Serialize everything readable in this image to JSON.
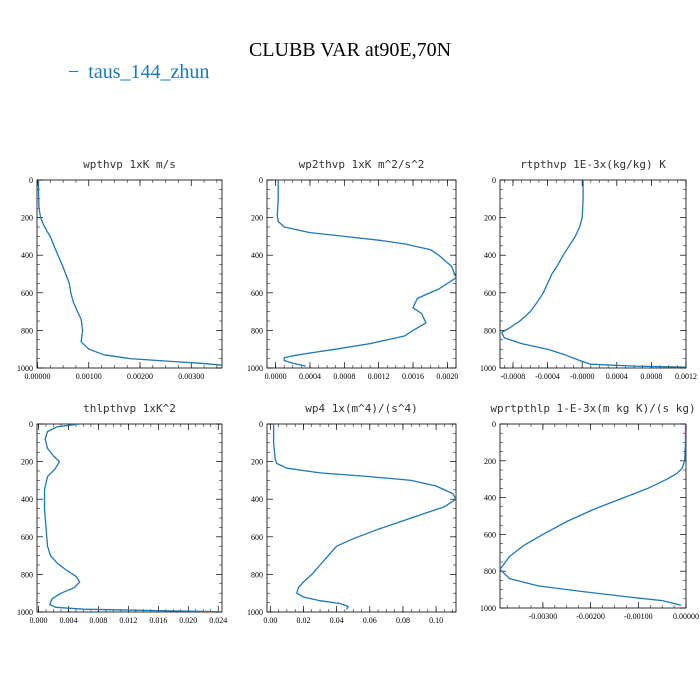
{
  "figure": {
    "title": "CLUBB VAR at90E,70N",
    "series_color": "#1f77b4",
    "legend": {
      "label": "taus_144_zhun",
      "marker": "−"
    }
  },
  "chart_data": [
    {
      "type": "line",
      "title": "wpthvp   1xK m/s",
      "xlim": [
        -1e-05,
        0.0036
      ],
      "ylim": [
        1000,
        0
      ],
      "xticks": [
        0,
        0.001,
        0.002,
        0.003
      ],
      "xtick_labels": [
        "0.00000",
        "0.00100",
        "0.00200",
        "0.00300"
      ],
      "yticks": [
        0,
        200,
        400,
        600,
        800,
        1000
      ],
      "ytick_labels": [
        "0",
        "200",
        "400",
        "600",
        "800",
        "1000"
      ],
      "series": [
        {
          "x": [
            2e-05,
            2e-05,
            3e-05,
            6e-05,
            0.00012,
            0.00018,
            0.00025,
            0.00032,
            0.0004,
            0.00048,
            0.00055,
            0.00062,
            0.00065,
            0.0007,
            0.00078,
            0.00085,
            0.00088,
            0.00085,
            0.001,
            0.0013,
            0.0018,
            0.0026,
            0.0032,
            0.0036
          ],
          "y": [
            0,
            50,
            150,
            200,
            240,
            270,
            300,
            350,
            400,
            450,
            500,
            550,
            600,
            650,
            700,
            740,
            800,
            860,
            900,
            930,
            950,
            965,
            975,
            985
          ]
        }
      ]
    },
    {
      "type": "line",
      "title": "wp2thvp   1xK m^2/s^2",
      "xlim": [
        -0.0001,
        0.0021
      ],
      "ylim": [
        1000,
        0
      ],
      "xticks": [
        0,
        0.0004,
        0.0008,
        0.0012,
        0.0016,
        0.002
      ],
      "xtick_labels": [
        "0.0000",
        "0.0004",
        "0.0008",
        "0.0012",
        "0.0016",
        "0.0020"
      ],
      "yticks": [
        0,
        200,
        400,
        600,
        800,
        1000
      ],
      "ytick_labels": [
        "0",
        "200",
        "400",
        "600",
        "800",
        "1000"
      ],
      "series": [
        {
          "x": [
            3e-05,
            3e-05,
            2e-05,
            3e-05,
            0.0001,
            0.0004,
            0.0008,
            0.0012,
            0.0015,
            0.0018,
            0.0019,
            0.00205,
            0.0021,
            0.0019,
            0.00165,
            0.0016,
            0.0017,
            0.00175,
            0.0016,
            0.0015,
            0.0011,
            0.0007,
            0.0004,
            0.0002,
            0.0001,
            0.0001,
            0.0002,
            0.00035
          ],
          "y": [
            0,
            100,
            190,
            220,
            250,
            280,
            300,
            320,
            340,
            370,
            400,
            460,
            520,
            580,
            630,
            680,
            710,
            760,
            800,
            830,
            870,
            900,
            920,
            935,
            945,
            960,
            975,
            990
          ]
        }
      ]
    },
    {
      "type": "line",
      "title": "rtpthvp   1E-3x(kg/kg) K",
      "xlim": [
        -0.00095,
        0.0012
      ],
      "ylim": [
        1000,
        0
      ],
      "xticks": [
        -0.0008,
        -0.0004,
        0,
        0.0004,
        0.0008,
        0.0012
      ],
      "xtick_labels": [
        "-0.0008",
        "-0.0004",
        "-0.0000",
        "0.0004",
        "0.0008",
        "0.0012"
      ],
      "yticks": [
        0,
        200,
        400,
        600,
        800,
        1000
      ],
      "ytick_labels": [
        "0",
        "200",
        "400",
        "600",
        "800",
        "1000"
      ],
      "series": [
        {
          "x": [
            1e-05,
            1e-05,
            0.0,
            -3e-05,
            -8e-05,
            -0.00015,
            -0.00022,
            -0.00028,
            -0.00035,
            -0.0004,
            -0.00045,
            -0.00052,
            -0.0006,
            -0.00072,
            -0.00085,
            -0.00093,
            -0.0009,
            -0.0007,
            -0.0004,
            -0.0002,
            -3e-05,
            0.0001,
            0.0006,
            0.0012
          ],
          "y": [
            0,
            100,
            200,
            250,
            300,
            350,
            400,
            450,
            500,
            550,
            600,
            650,
            700,
            750,
            790,
            810,
            840,
            870,
            900,
            930,
            960,
            980,
            990,
            995
          ]
        }
      ]
    },
    {
      "type": "line",
      "title": "thlpthvp   1xK^2",
      "xlim": [
        -0.0002,
        0.0245
      ],
      "ylim": [
        1000,
        0
      ],
      "xticks": [
        0,
        0.004,
        0.008,
        0.012,
        0.016,
        0.02,
        0.024
      ],
      "xtick_labels": [
        "0.000",
        "0.004",
        "0.008",
        "0.012",
        "0.016",
        "0.020",
        "0.024"
      ],
      "yticks": [
        0,
        200,
        400,
        600,
        800,
        1000
      ],
      "ytick_labels": [
        "0",
        "200",
        "400",
        "600",
        "800",
        "1000"
      ],
      "series": [
        {
          "x": [
            0.0055,
            0.0025,
            0.0012,
            0.0009,
            0.0012,
            0.002,
            0.0028,
            0.0022,
            0.0012,
            0.0008,
            0.0008,
            0.001,
            0.0012,
            0.0016,
            0.0025,
            0.0038,
            0.005,
            0.0055,
            0.0048,
            0.003,
            0.0018,
            0.0015,
            0.0023,
            0.006,
            0.015,
            0.024
          ],
          "y": [
            0,
            15,
            40,
            80,
            130,
            170,
            200,
            240,
            280,
            350,
            450,
            550,
            650,
            700,
            740,
            780,
            810,
            840,
            870,
            900,
            930,
            960,
            975,
            985,
            992,
            998
          ]
        }
      ]
    },
    {
      "type": "line",
      "title": "wp4   1x(m^4)/(s^4)",
      "xlim": [
        -0.002,
        0.112
      ],
      "ylim": [
        1000,
        0
      ],
      "xticks": [
        0,
        0.02,
        0.04,
        0.06,
        0.08,
        0.1
      ],
      "xtick_labels": [
        "0.00",
        "0.02",
        "0.04",
        "0.06",
        "0.08",
        "0.10"
      ],
      "yticks": [
        0,
        200,
        400,
        600,
        800,
        1000
      ],
      "ytick_labels": [
        "0",
        "200",
        "400",
        "600",
        "800",
        "1000"
      ],
      "series": [
        {
          "x": [
            0.002,
            0.002,
            0.003,
            0.004,
            0.01,
            0.03,
            0.06,
            0.085,
            0.1,
            0.11,
            0.112,
            0.105,
            0.085,
            0.065,
            0.05,
            0.04,
            0.035,
            0.03,
            0.025,
            0.02,
            0.017,
            0.016,
            0.02,
            0.03,
            0.042,
            0.047,
            0.046
          ],
          "y": [
            0,
            100,
            190,
            210,
            235,
            260,
            280,
            300,
            330,
            370,
            400,
            440,
            500,
            560,
            610,
            650,
            700,
            750,
            800,
            840,
            870,
            900,
            920,
            940,
            955,
            970,
            985
          ]
        }
      ]
    },
    {
      "type": "line",
      "title": "wprtpthlp   1-E-3x(m kg K)/(s kg)",
      "xlim": [
        -0.0039,
        0.0
      ],
      "ylim": [
        1000,
        0
      ],
      "xticks": [
        -0.003,
        -0.002,
        -0.001,
        0
      ],
      "xtick_labels": [
        "-0.00300",
        "-0.00200",
        "-0.00100",
        "0.00000"
      ],
      "yticks": [
        0,
        200,
        400,
        600,
        800,
        1000
      ],
      "ytick_labels": [
        "0",
        "200",
        "400",
        "600",
        "800",
        "1000"
      ],
      "series": [
        {
          "x": [
            -1e-05,
            -1e-05,
            -3e-05,
            -8e-05,
            -0.0002,
            -0.0004,
            -0.0008,
            -0.0013,
            -0.0019,
            -0.0025,
            -0.003,
            -0.0034,
            -0.0037,
            -0.0039,
            -0.0037,
            -0.0031,
            -0.0022,
            -0.0012,
            -0.0005,
            -0.0001
          ],
          "y": [
            0,
            100,
            200,
            240,
            270,
            300,
            350,
            400,
            460,
            530,
            600,
            660,
            720,
            790,
            840,
            880,
            910,
            940,
            960,
            985
          ]
        }
      ]
    }
  ]
}
